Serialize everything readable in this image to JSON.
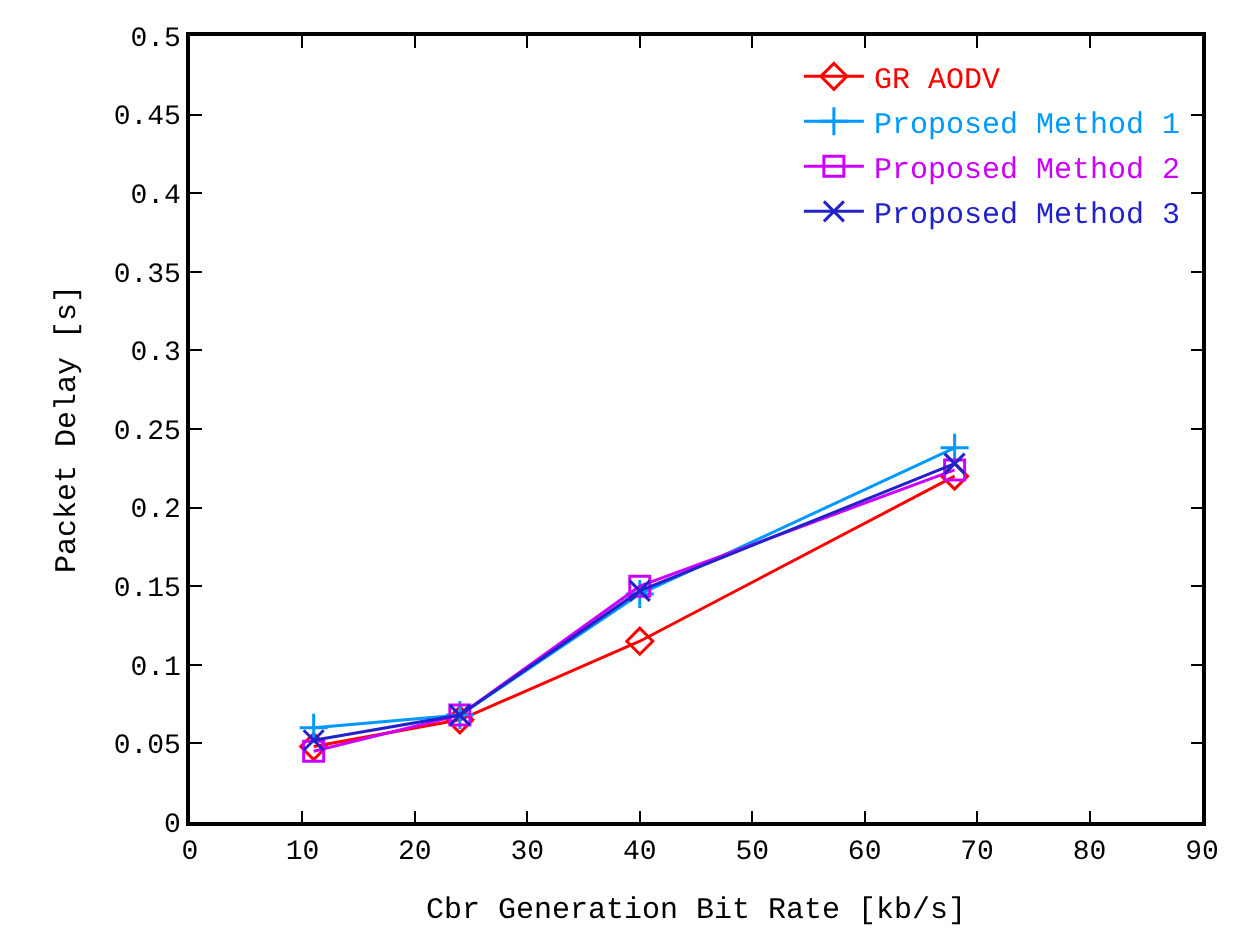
{
  "chart_data": {
    "type": "line",
    "xlabel": "Cbr Generation Bit Rate [kb/s]",
    "ylabel": "Packet Delay [s]",
    "x": [
      11,
      24,
      40,
      68
    ],
    "series": [
      {
        "name": "GR AODV",
        "color": "#ff0000",
        "marker": "diamond",
        "values": [
          0.048,
          0.065,
          0.115,
          0.22
        ]
      },
      {
        "name": "Proposed Method 1",
        "color": "#0099ff",
        "marker": "cross",
        "values": [
          0.06,
          0.068,
          0.145,
          0.238
        ]
      },
      {
        "name": "Proposed Method 2",
        "color": "#cc00ff",
        "marker": "square",
        "values": [
          0.045,
          0.068,
          0.15,
          0.224
        ]
      },
      {
        "name": "Proposed Method 3",
        "color": "#2222cc",
        "marker": "x",
        "values": [
          0.052,
          0.068,
          0.147,
          0.228
        ]
      }
    ],
    "xlim": [
      0,
      90
    ],
    "xticks": [
      0,
      10,
      20,
      30,
      40,
      50,
      60,
      70,
      80,
      90
    ],
    "ylim": [
      0,
      0.5
    ],
    "yticks": [
      0,
      0.05,
      0.1,
      0.15,
      0.2,
      0.25,
      0.3,
      0.35,
      0.4,
      0.45,
      0.5
    ],
    "legend": "top right",
    "line_style": "solid"
  }
}
